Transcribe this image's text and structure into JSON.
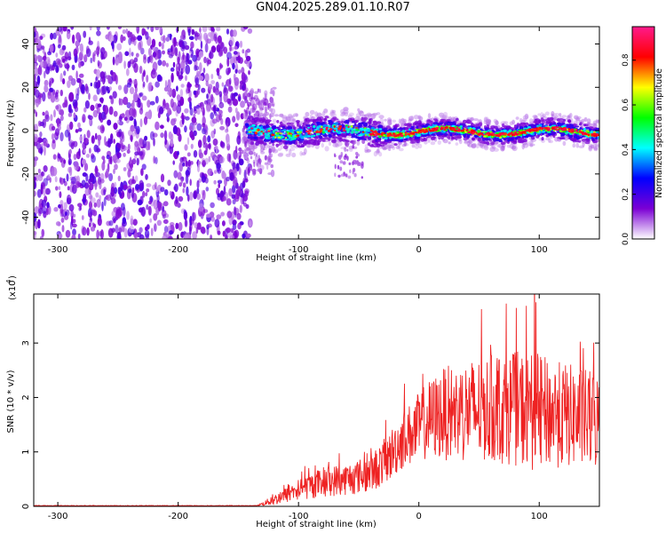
{
  "title": "GN04.2025.289.01.10.R07",
  "chart_data": [
    {
      "type": "heatmap",
      "name": "spectrogram",
      "xlabel": "Height of straight line (km)",
      "ylabel": "Frequency (Hz)",
      "xlim": [
        -320,
        150
      ],
      "ylim": [
        -50,
        48
      ],
      "xticks": [
        -300,
        -200,
        -100,
        0,
        100
      ],
      "xtick_labels": [
        "-300",
        "-200",
        "-100",
        "0",
        "100"
      ],
      "yticks": [
        -40,
        -20,
        0,
        20,
        40
      ],
      "ytick_labels": [
        "-40",
        "-20",
        "0",
        "20",
        "40"
      ],
      "noise_region_x": [
        -320,
        -143
      ],
      "signal_region_x": [
        -143,
        150
      ],
      "signal_band_hz": [
        -5,
        5
      ],
      "colorbar": {
        "label": "Normalized spectral amplitude",
        "range": [
          0,
          0.95
        ],
        "ticks": [
          0.0,
          0.2,
          0.4,
          0.6,
          0.8
        ],
        "tick_labels": [
          "0.0",
          "0.2",
          "0.4",
          "0.6",
          "0.8"
        ],
        "colors": [
          "#ffffff",
          "#7b00d4",
          "#0000ff",
          "#00ffff",
          "#00ff00",
          "#ffff00",
          "#ff0000",
          "#ff1a8c"
        ]
      }
    },
    {
      "type": "line",
      "name": "snr",
      "xlabel": "Height of straight line (km)",
      "ylabel": "SNR (10 * v/v)",
      "yscale_label": "(x10",
      "yscale_exp": "4",
      "xlim": [
        -320,
        150
      ],
      "ylim": [
        0,
        3.9
      ],
      "xticks": [
        -300,
        -200,
        -100,
        0,
        100
      ],
      "xtick_labels": [
        "-300",
        "-200",
        "-100",
        "0",
        "100"
      ],
      "yticks": [
        0,
        1,
        2,
        3
      ],
      "ytick_labels": [
        "0",
        "1",
        "2",
        "3"
      ],
      "color": "#ee2222",
      "envelope": {
        "x": [
          -320,
          -135,
          -120,
          -100,
          -80,
          -60,
          -40,
          -25,
          -15,
          -5,
          5,
          20,
          40,
          60,
          80,
          95,
          110,
          130,
          150
        ],
        "mean": [
          0.01,
          0.01,
          0.12,
          0.3,
          0.45,
          0.5,
          0.6,
          0.9,
          1.2,
          1.35,
          1.55,
          1.7,
          1.75,
          1.8,
          1.8,
          1.75,
          1.7,
          1.65,
          1.55
        ],
        "spread": [
          0.0,
          0.0,
          0.1,
          0.2,
          0.28,
          0.3,
          0.35,
          0.45,
          0.55,
          0.6,
          0.7,
          0.85,
          0.95,
          1.0,
          1.05,
          1.1,
          1.0,
          0.95,
          0.9
        ]
      },
      "peak": {
        "x": 96,
        "y": 3.9
      }
    }
  ]
}
